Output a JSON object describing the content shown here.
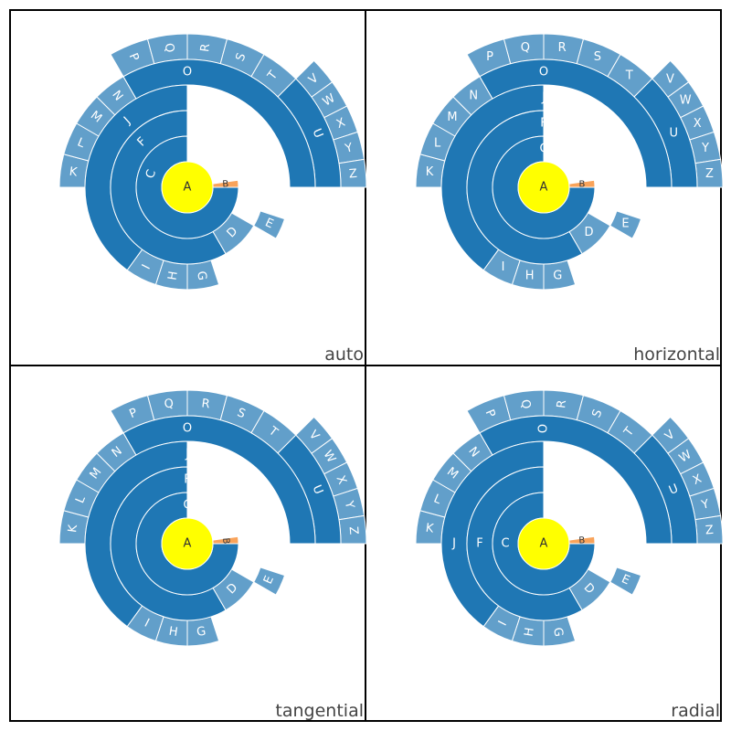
{
  "colors": {
    "root": "#ffff00",
    "dark": "#1f77b4",
    "light": "#629fca",
    "orange": "#f9a35a",
    "edge": "#ffffff",
    "label_on_dark": "#ffffff",
    "label_on_root": "#333333"
  },
  "chart_data": [
    {
      "type": "sunburst",
      "title": "auto",
      "label_orientation": "auto",
      "nodes": [
        {
          "label": "A",
          "ring": 0,
          "start": 0,
          "end": 360,
          "tone": "root"
        },
        {
          "label": "B",
          "ring": 1,
          "start": -8,
          "end": 0,
          "tone": "orange"
        },
        {
          "label": "C",
          "ring": 1,
          "start": 0,
          "end": 270,
          "tone": "dark"
        },
        {
          "label": "D",
          "ring": 2,
          "start": 30,
          "end": 60,
          "tone": "light"
        },
        {
          "label": "E",
          "ring": 3,
          "start": 18,
          "end": 30,
          "tone": "light"
        },
        {
          "label": "F",
          "ring": 2,
          "start": 60,
          "end": 270,
          "tone": "dark"
        },
        {
          "label": "G",
          "ring": 3,
          "start": 72,
          "end": 90,
          "tone": "light"
        },
        {
          "label": "H",
          "ring": 3,
          "start": 90,
          "end": 108,
          "tone": "light"
        },
        {
          "label": "I",
          "ring": 3,
          "start": 108,
          "end": 126,
          "tone": "light"
        },
        {
          "label": "J",
          "ring": 3,
          "start": 126,
          "end": 270,
          "tone": "dark"
        },
        {
          "label": "K",
          "ring": 4,
          "start": 180,
          "end": 195,
          "tone": "light"
        },
        {
          "label": "L",
          "ring": 4,
          "start": 195,
          "end": 210,
          "tone": "light"
        },
        {
          "label": "M",
          "ring": 4,
          "start": 210,
          "end": 225,
          "tone": "light"
        },
        {
          "label": "N",
          "ring": 4,
          "start": 225,
          "end": 240,
          "tone": "light"
        },
        {
          "label": "O",
          "ring": 4,
          "start": 240,
          "end": 360,
          "tone": "dark"
        },
        {
          "label": "P",
          "ring": 5,
          "start": 240,
          "end": 255,
          "tone": "light"
        },
        {
          "label": "Q",
          "ring": 5,
          "start": 255,
          "end": 270,
          "tone": "light"
        },
        {
          "label": "R",
          "ring": 5,
          "start": 270,
          "end": 285,
          "tone": "light"
        },
        {
          "label": "S",
          "ring": 5,
          "start": 285,
          "end": 300,
          "tone": "light"
        },
        {
          "label": "T",
          "ring": 5,
          "start": 300,
          "end": 315,
          "tone": "light"
        },
        {
          "label": "U",
          "ring": 5,
          "start": 315,
          "end": 360,
          "tone": "dark"
        },
        {
          "label": "V",
          "ring": 6,
          "start": 315,
          "end": 324,
          "tone": "light"
        },
        {
          "label": "W",
          "ring": 6,
          "start": 324,
          "end": 333,
          "tone": "light"
        },
        {
          "label": "X",
          "ring": 6,
          "start": 333,
          "end": 342,
          "tone": "light"
        },
        {
          "label": "Y",
          "ring": 6,
          "start": 342,
          "end": 351,
          "tone": "light"
        },
        {
          "label": "Z",
          "ring": 6,
          "start": 351,
          "end": 360,
          "tone": "light"
        }
      ]
    },
    {
      "type": "sunburst",
      "title": "horizontal",
      "label_orientation": "horizontal",
      "nodes": [
        {
          "label": "A",
          "ring": 0,
          "start": 0,
          "end": 360,
          "tone": "root"
        },
        {
          "label": "B",
          "ring": 1,
          "start": -8,
          "end": 0,
          "tone": "orange"
        },
        {
          "label": "C",
          "ring": 1,
          "start": 0,
          "end": 270,
          "tone": "dark"
        },
        {
          "label": "D",
          "ring": 2,
          "start": 30,
          "end": 60,
          "tone": "light"
        },
        {
          "label": "E",
          "ring": 3,
          "start": 18,
          "end": 30,
          "tone": "light"
        },
        {
          "label": "F",
          "ring": 2,
          "start": 60,
          "end": 270,
          "tone": "dark"
        },
        {
          "label": "G",
          "ring": 3,
          "start": 72,
          "end": 90,
          "tone": "light"
        },
        {
          "label": "H",
          "ring": 3,
          "start": 90,
          "end": 108,
          "tone": "light"
        },
        {
          "label": "I",
          "ring": 3,
          "start": 108,
          "end": 126,
          "tone": "light"
        },
        {
          "label": "J",
          "ring": 3,
          "start": 126,
          "end": 270,
          "tone": "dark"
        },
        {
          "label": "K",
          "ring": 4,
          "start": 180,
          "end": 195,
          "tone": "light"
        },
        {
          "label": "L",
          "ring": 4,
          "start": 195,
          "end": 210,
          "tone": "light"
        },
        {
          "label": "M",
          "ring": 4,
          "start": 210,
          "end": 225,
          "tone": "light"
        },
        {
          "label": "N",
          "ring": 4,
          "start": 225,
          "end": 240,
          "tone": "light"
        },
        {
          "label": "O",
          "ring": 4,
          "start": 240,
          "end": 360,
          "tone": "dark"
        },
        {
          "label": "P",
          "ring": 5,
          "start": 240,
          "end": 255,
          "tone": "light"
        },
        {
          "label": "Q",
          "ring": 5,
          "start": 255,
          "end": 270,
          "tone": "light"
        },
        {
          "label": "R",
          "ring": 5,
          "start": 270,
          "end": 285,
          "tone": "light"
        },
        {
          "label": "S",
          "ring": 5,
          "start": 285,
          "end": 300,
          "tone": "light"
        },
        {
          "label": "T",
          "ring": 5,
          "start": 300,
          "end": 315,
          "tone": "light"
        },
        {
          "label": "U",
          "ring": 5,
          "start": 315,
          "end": 360,
          "tone": "dark"
        },
        {
          "label": "V",
          "ring": 6,
          "start": 315,
          "end": 324,
          "tone": "light"
        },
        {
          "label": "W",
          "ring": 6,
          "start": 324,
          "end": 333,
          "tone": "light"
        },
        {
          "label": "X",
          "ring": 6,
          "start": 333,
          "end": 342,
          "tone": "light"
        },
        {
          "label": "Y",
          "ring": 6,
          "start": 342,
          "end": 351,
          "tone": "light"
        },
        {
          "label": "Z",
          "ring": 6,
          "start": 351,
          "end": 360,
          "tone": "light"
        }
      ]
    },
    {
      "type": "sunburst",
      "title": "tangential",
      "label_orientation": "tangential",
      "nodes": [
        {
          "label": "A",
          "ring": 0,
          "start": 0,
          "end": 360,
          "tone": "root"
        },
        {
          "label": "B",
          "ring": 1,
          "start": -8,
          "end": 0,
          "tone": "orange"
        },
        {
          "label": "C",
          "ring": 1,
          "start": 0,
          "end": 270,
          "tone": "dark"
        },
        {
          "label": "D",
          "ring": 2,
          "start": 30,
          "end": 60,
          "tone": "light"
        },
        {
          "label": "E",
          "ring": 3,
          "start": 18,
          "end": 30,
          "tone": "light"
        },
        {
          "label": "F",
          "ring": 2,
          "start": 60,
          "end": 270,
          "tone": "dark"
        },
        {
          "label": "G",
          "ring": 3,
          "start": 72,
          "end": 90,
          "tone": "light"
        },
        {
          "label": "H",
          "ring": 3,
          "start": 90,
          "end": 108,
          "tone": "light"
        },
        {
          "label": "I",
          "ring": 3,
          "start": 108,
          "end": 126,
          "tone": "light"
        },
        {
          "label": "J",
          "ring": 3,
          "start": 126,
          "end": 270,
          "tone": "dark"
        },
        {
          "label": "K",
          "ring": 4,
          "start": 180,
          "end": 195,
          "tone": "light"
        },
        {
          "label": "L",
          "ring": 4,
          "start": 195,
          "end": 210,
          "tone": "light"
        },
        {
          "label": "M",
          "ring": 4,
          "start": 210,
          "end": 225,
          "tone": "light"
        },
        {
          "label": "N",
          "ring": 4,
          "start": 225,
          "end": 240,
          "tone": "light"
        },
        {
          "label": "O",
          "ring": 4,
          "start": 240,
          "end": 360,
          "tone": "dark"
        },
        {
          "label": "P",
          "ring": 5,
          "start": 240,
          "end": 255,
          "tone": "light"
        },
        {
          "label": "Q",
          "ring": 5,
          "start": 255,
          "end": 270,
          "tone": "light"
        },
        {
          "label": "R",
          "ring": 5,
          "start": 270,
          "end": 285,
          "tone": "light"
        },
        {
          "label": "S",
          "ring": 5,
          "start": 285,
          "end": 300,
          "tone": "light"
        },
        {
          "label": "T",
          "ring": 5,
          "start": 300,
          "end": 315,
          "tone": "light"
        },
        {
          "label": "U",
          "ring": 5,
          "start": 315,
          "end": 360,
          "tone": "dark"
        },
        {
          "label": "V",
          "ring": 6,
          "start": 315,
          "end": 324,
          "tone": "light"
        },
        {
          "label": "W",
          "ring": 6,
          "start": 324,
          "end": 333,
          "tone": "light"
        },
        {
          "label": "X",
          "ring": 6,
          "start": 333,
          "end": 342,
          "tone": "light"
        },
        {
          "label": "Y",
          "ring": 6,
          "start": 342,
          "end": 351,
          "tone": "light"
        },
        {
          "label": "Z",
          "ring": 6,
          "start": 351,
          "end": 360,
          "tone": "light"
        }
      ]
    },
    {
      "type": "sunburst",
      "title": "radial",
      "label_orientation": "radial",
      "nodes": [
        {
          "label": "A",
          "ring": 0,
          "start": 0,
          "end": 360,
          "tone": "root"
        },
        {
          "label": "B",
          "ring": 1,
          "start": -8,
          "end": 0,
          "tone": "orange"
        },
        {
          "label": "C",
          "ring": 1,
          "start": 0,
          "end": 270,
          "tone": "dark"
        },
        {
          "label": "D",
          "ring": 2,
          "start": 30,
          "end": 60,
          "tone": "light"
        },
        {
          "label": "E",
          "ring": 3,
          "start": 18,
          "end": 30,
          "tone": "light"
        },
        {
          "label": "F",
          "ring": 2,
          "start": 60,
          "end": 270,
          "tone": "dark"
        },
        {
          "label": "G",
          "ring": 3,
          "start": 72,
          "end": 90,
          "tone": "light"
        },
        {
          "label": "H",
          "ring": 3,
          "start": 90,
          "end": 108,
          "tone": "light"
        },
        {
          "label": "I",
          "ring": 3,
          "start": 108,
          "end": 126,
          "tone": "light"
        },
        {
          "label": "J",
          "ring": 3,
          "start": 126,
          "end": 270,
          "tone": "dark"
        },
        {
          "label": "K",
          "ring": 4,
          "start": 180,
          "end": 195,
          "tone": "light"
        },
        {
          "label": "L",
          "ring": 4,
          "start": 195,
          "end": 210,
          "tone": "light"
        },
        {
          "label": "M",
          "ring": 4,
          "start": 210,
          "end": 225,
          "tone": "light"
        },
        {
          "label": "N",
          "ring": 4,
          "start": 225,
          "end": 240,
          "tone": "light"
        },
        {
          "label": "O",
          "ring": 4,
          "start": 240,
          "end": 360,
          "tone": "dark"
        },
        {
          "label": "P",
          "ring": 5,
          "start": 240,
          "end": 255,
          "tone": "light"
        },
        {
          "label": "Q",
          "ring": 5,
          "start": 255,
          "end": 270,
          "tone": "light"
        },
        {
          "label": "R",
          "ring": 5,
          "start": 270,
          "end": 285,
          "tone": "light"
        },
        {
          "label": "S",
          "ring": 5,
          "start": 285,
          "end": 300,
          "tone": "light"
        },
        {
          "label": "T",
          "ring": 5,
          "start": 300,
          "end": 315,
          "tone": "light"
        },
        {
          "label": "U",
          "ring": 5,
          "start": 315,
          "end": 360,
          "tone": "dark"
        },
        {
          "label": "V",
          "ring": 6,
          "start": 315,
          "end": 324,
          "tone": "light"
        },
        {
          "label": "W",
          "ring": 6,
          "start": 324,
          "end": 333,
          "tone": "light"
        },
        {
          "label": "X",
          "ring": 6,
          "start": 333,
          "end": 342,
          "tone": "light"
        },
        {
          "label": "Y",
          "ring": 6,
          "start": 342,
          "end": 351,
          "tone": "light"
        },
        {
          "label": "Z",
          "ring": 6,
          "start": 351,
          "end": 360,
          "tone": "light"
        }
      ]
    }
  ]
}
